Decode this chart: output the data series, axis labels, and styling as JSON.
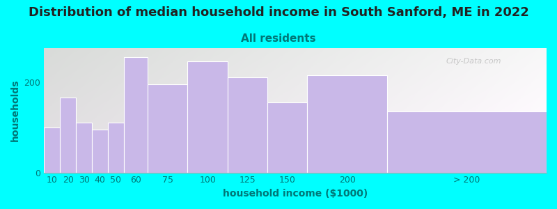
{
  "title": "Distribution of median household income in South Sanford, ME in 2022",
  "subtitle": "All residents",
  "xlabel": "household income ($1000)",
  "ylabel": "households",
  "background_color": "#00FFFF",
  "plot_bg_left": "#ddf0d0",
  "plot_bg_right": "#f8f8f8",
  "bar_color": "#c9b8e8",
  "bar_edge_color": "#ffffff",
  "categories": [
    "10",
    "20",
    "30",
    "40",
    "50",
    "60",
    "75",
    "100",
    "125",
    "150",
    "200",
    "> 200"
  ],
  "values": [
    100,
    165,
    110,
    95,
    110,
    255,
    195,
    245,
    210,
    155,
    215,
    135
  ],
  "bar_widths": [
    1,
    1,
    1,
    1,
    1,
    1.5,
    2.5,
    2.5,
    2.5,
    2.5,
    5,
    10
  ],
  "bar_lefts": [
    0,
    1,
    2,
    3,
    4,
    5,
    6.5,
    9,
    11.5,
    14,
    16.5,
    21.5
  ],
  "ylim": [
    0,
    275
  ],
  "yticks": [
    0,
    200
  ],
  "title_fontsize": 13,
  "subtitle_fontsize": 11,
  "axis_label_fontsize": 10,
  "tick_fontsize": 9,
  "title_color": "#222222",
  "subtitle_color": "#007777",
  "axis_label_color": "#007777",
  "tick_color": "#007777",
  "watermark_text": "City-Data.com",
  "watermark_color": "#bbbbbb"
}
